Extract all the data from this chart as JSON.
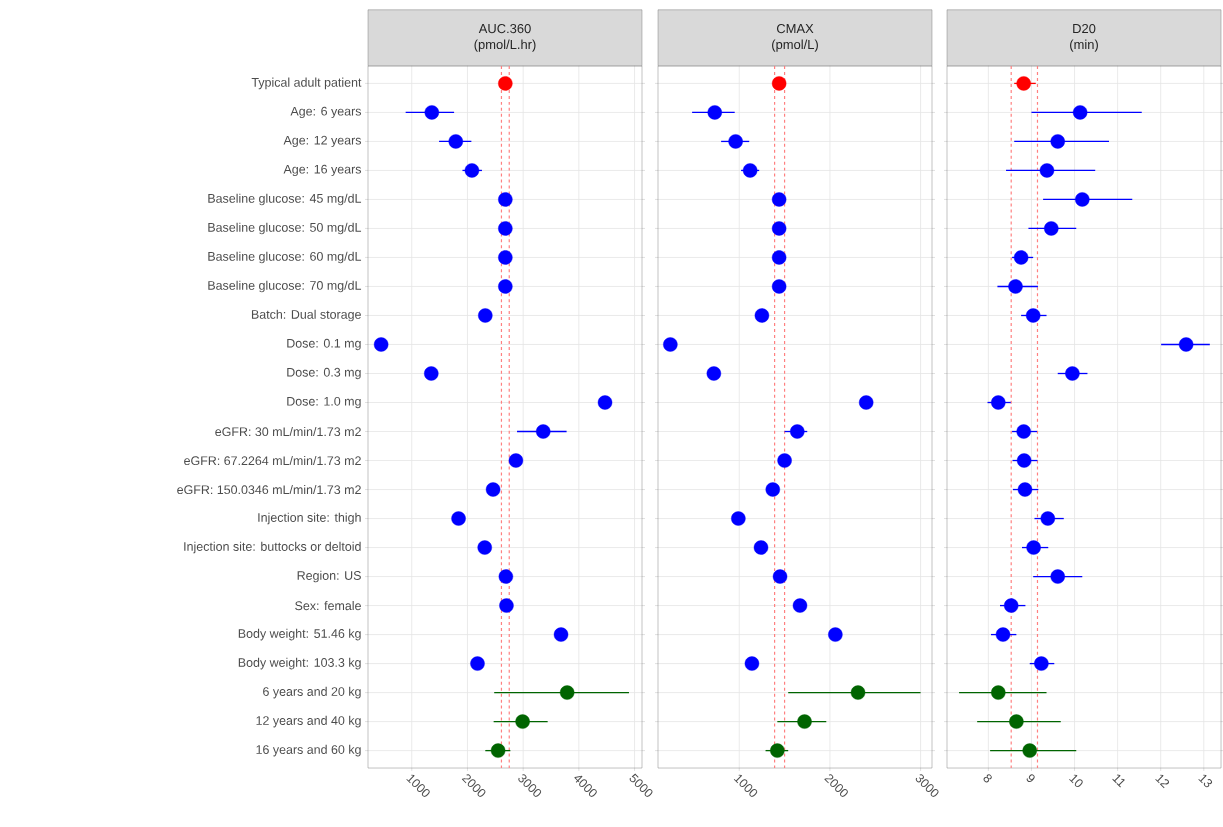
{
  "chart_data": [
    {
      "type": "scatter",
      "title": "AUC.360",
      "subtitle": "(pmol/L.hr)",
      "orientation": "horizontal",
      "grid": true,
      "marker": "circle",
      "categories": [
        "Typical adult patient",
        "Age: 6 years",
        "Age: 12 years",
        "Age: 16 years",
        "Baseline glucose: 45 mg/dL",
        "Baseline glucose: 50 mg/dL",
        "Baseline glucose: 60 mg/dL",
        "Baseline glucose: 70 mg/dL",
        "Batch: Dual storage",
        "Dose: 0.1 mg",
        "Dose: 0.3 mg",
        "Dose: 1.0 mg",
        "eGFR: 30 mL/min/1.73 m2",
        "eGFR: 67.2264 mL/min/1.73 m2",
        "eGFR: 150.0346 mL/min/1.73 m2",
        "Injection site: thigh",
        "Injection site: buttocks or deltoid",
        "Region: US",
        "Sex: female",
        "Body weight: 51.46 kg",
        "Body weight: 103.3 kg",
        "6 years and 20 kg",
        "12 years and 40 kg",
        "16 years and 60 kg"
      ],
      "values": [
        2680,
        1360,
        1790,
        2080,
        2680,
        2680,
        2680,
        2680,
        2320,
        450,
        1350,
        4470,
        3360,
        2870,
        2460,
        1840,
        2310,
        2690,
        2700,
        3680,
        2180,
        3790,
        2990,
        2550
      ],
      "errors": [
        null,
        [
          890,
          1760
        ],
        [
          1490,
          2070
        ],
        [
          1910,
          2260
        ],
        null,
        null,
        null,
        null,
        null,
        null,
        null,
        null,
        [
          2890,
          3780
        ],
        null,
        null,
        null,
        null,
        null,
        null,
        null,
        null,
        [
          2480,
          4900
        ],
        [
          2470,
          3440
        ],
        [
          2320,
          2770
        ]
      ],
      "colors": [
        "#ff0000",
        "#0000ff",
        "#0000ff",
        "#0000ff",
        "#0000ff",
        "#0000ff",
        "#0000ff",
        "#0000ff",
        "#0000ff",
        "#0000ff",
        "#0000ff",
        "#0000ff",
        "#0000ff",
        "#0000ff",
        "#0000ff",
        "#0000ff",
        "#0000ff",
        "#0000ff",
        "#0000ff",
        "#0000ff",
        "#0000ff",
        "#006400",
        "#006400",
        "#006400"
      ],
      "xlim": [
        214,
        5134
      ],
      "xticks": [
        1000,
        2000,
        3000,
        4000,
        5000
      ],
      "ref_lines": [
        {
          "axis": "x",
          "value": 2610,
          "color": "#ff8080",
          "line_style": "dashed"
        },
        {
          "axis": "x",
          "value": 2750,
          "color": "#ff8080",
          "line_style": "dashed"
        }
      ]
    },
    {
      "type": "scatter",
      "title": "CMAX",
      "subtitle": "(pmol/L)",
      "orientation": "horizontal",
      "grid": true,
      "marker": "circle",
      "tick_labels": "x",
      "categories": [
        null,
        null,
        null,
        null,
        null,
        null,
        null,
        null,
        null,
        null,
        null,
        null,
        null,
        null,
        null,
        null,
        null,
        null,
        null,
        null,
        null,
        null,
        null,
        null
      ],
      "values": [
        1440,
        730,
        960,
        1120,
        1440,
        1440,
        1440,
        1440,
        1250,
        240,
        720,
        2400,
        1640,
        1500,
        1370,
        990,
        1240,
        1450,
        1670,
        2060,
        1140,
        2310,
        1720,
        1420
      ],
      "errors": [
        null,
        [
          480,
          950
        ],
        [
          800,
          1110
        ],
        [
          1020,
          1220
        ],
        null,
        null,
        null,
        null,
        null,
        null,
        null,
        null,
        [
          1500,
          1750
        ],
        null,
        null,
        null,
        null,
        null,
        null,
        null,
        null,
        [
          1540,
          3000
        ],
        [
          1420,
          1960
        ],
        [
          1290,
          1540
        ]
      ],
      "colors": [
        "#ff0000",
        "#0000ff",
        "#0000ff",
        "#0000ff",
        "#0000ff",
        "#0000ff",
        "#0000ff",
        "#0000ff",
        "#0000ff",
        "#0000ff",
        "#0000ff",
        "#0000ff",
        "#0000ff",
        "#0000ff",
        "#0000ff",
        "#0000ff",
        "#0000ff",
        "#0000ff",
        "#0000ff",
        "#0000ff",
        "#0000ff",
        "#006400",
        "#006400",
        "#006400"
      ],
      "xlim": [
        104,
        3126
      ],
      "xticks": [
        1000,
        2000,
        3000
      ],
      "ref_lines": [
        {
          "axis": "x",
          "value": 1390,
          "color": "#ff8080",
          "line_style": "dashed"
        },
        {
          "axis": "x",
          "value": 1500,
          "color": "#ff8080",
          "line_style": "dashed"
        }
      ]
    },
    {
      "type": "scatter",
      "title": "D20",
      "subtitle": "(min)",
      "orientation": "horizontal",
      "grid": true,
      "marker": "circle",
      "tick_labels": "x",
      "categories": [
        null,
        null,
        null,
        null,
        null,
        null,
        null,
        null,
        null,
        null,
        null,
        null,
        null,
        null,
        null,
        null,
        null,
        null,
        null,
        null,
        null,
        null,
        null,
        null
      ],
      "values": [
        8.82,
        10.13,
        9.61,
        9.36,
        10.18,
        9.46,
        8.76,
        8.63,
        9.04,
        12.59,
        9.95,
        8.23,
        8.82,
        8.83,
        8.85,
        9.38,
        9.05,
        9.61,
        8.53,
        8.34,
        9.23,
        8.23,
        8.65,
        8.96
      ],
      "errors": [
        [
          8.6,
          9.1
        ],
        [
          9.0,
          11.56
        ],
        [
          8.6,
          10.8
        ],
        [
          8.41,
          10.48
        ],
        [
          9.27,
          11.34
        ],
        [
          8.93,
          10.04
        ],
        [
          8.55,
          9.04
        ],
        [
          8.21,
          9.15
        ],
        [
          8.76,
          9.35
        ],
        [
          12.01,
          13.14
        ],
        [
          9.61,
          10.3
        ],
        [
          7.98,
          8.52
        ],
        [
          8.55,
          9.13
        ],
        [
          8.56,
          9.14
        ],
        [
          8.57,
          9.16
        ],
        [
          9.07,
          9.75
        ],
        [
          8.78,
          9.39
        ],
        [
          9.04,
          10.18
        ],
        [
          8.27,
          8.86
        ],
        [
          8.06,
          8.65
        ],
        [
          8.96,
          9.53
        ],
        [
          7.32,
          9.35
        ],
        [
          7.74,
          9.68
        ],
        [
          8.04,
          10.04
        ]
      ],
      "colors": [
        "#ff0000",
        "#0000ff",
        "#0000ff",
        "#0000ff",
        "#0000ff",
        "#0000ff",
        "#0000ff",
        "#0000ff",
        "#0000ff",
        "#0000ff",
        "#0000ff",
        "#0000ff",
        "#0000ff",
        "#0000ff",
        "#0000ff",
        "#0000ff",
        "#0000ff",
        "#0000ff",
        "#0000ff",
        "#0000ff",
        "#0000ff",
        "#006400",
        "#006400",
        "#006400"
      ],
      "xlim": [
        7.04,
        13.4
      ],
      "xticks": [
        8,
        9,
        10,
        11,
        12,
        13
      ],
      "ref_lines": [
        {
          "axis": "x",
          "value": 8.53,
          "color": "#ff8080",
          "line_style": "dashed"
        },
        {
          "axis": "x",
          "value": 9.14,
          "color": "#ff8080",
          "line_style": "dashed"
        }
      ]
    }
  ]
}
